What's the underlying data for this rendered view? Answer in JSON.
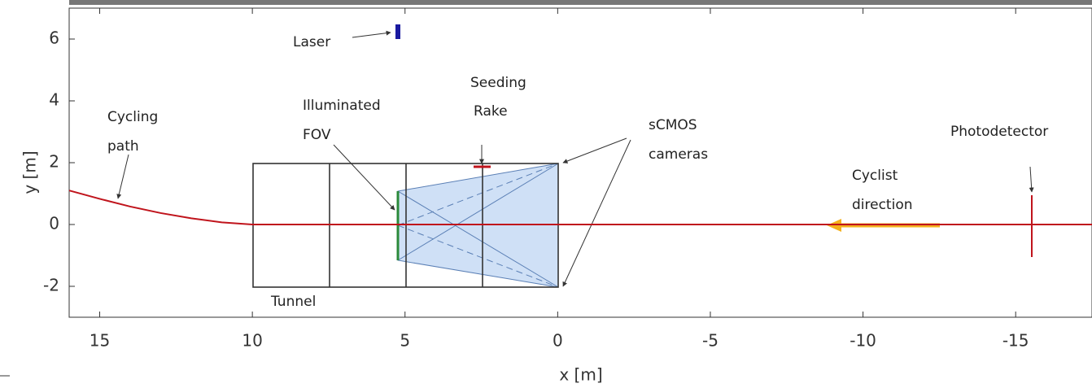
{
  "chart_data": {
    "type": "line",
    "xlabel": "x [m]",
    "ylabel": "y [m]",
    "xlim": [
      16,
      -17.5
    ],
    "ylim": [
      -3,
      7
    ],
    "xticks": [
      15,
      10,
      5,
      0,
      -5,
      -10,
      -15
    ],
    "yticks": [
      -2,
      0,
      2,
      4,
      6
    ],
    "series": [
      {
        "color": "#c0141c",
        "x": [
          16,
          15,
          14,
          13,
          12,
          11,
          10,
          -17.5
        ],
        "values": [
          1.1,
          0.83,
          0.58,
          0.37,
          0.2,
          0.07,
          0,
          0
        ]
      }
    ],
    "annotations": {
      "laser": "Laser",
      "cycling_path": [
        "Cycling",
        "path"
      ],
      "fov": [
        "Illuminated",
        "FOV"
      ],
      "rake": [
        "Seeding",
        "Rake"
      ],
      "cameras": [
        "sCMOS",
        "cameras"
      ],
      "photodetector": "Photodetector",
      "cyclist": [
        "Cyclist",
        "direction"
      ],
      "tunnel": "Tunnel"
    }
  }
}
